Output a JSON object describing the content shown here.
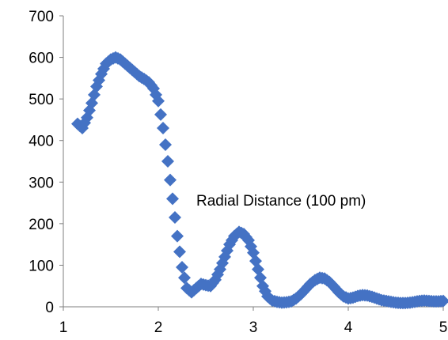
{
  "chart_data": {
    "type": "scatter",
    "title": "",
    "xlabel": "",
    "ylabel": "",
    "xlim": [
      1,
      5
    ],
    "ylim": [
      0,
      700
    ],
    "x_ticks": [
      "1",
      "2",
      "3",
      "4",
      "5"
    ],
    "y_ticks": [
      "0",
      "100",
      "200",
      "300",
      "400",
      "500",
      "600",
      "700"
    ],
    "grid": false,
    "legend": "none",
    "marker": "diamond",
    "series_color": "#4472C4",
    "annotation": "Radial  Distance (100 pm)",
    "series": [
      {
        "x": [
          1.15,
          1.2,
          1.25,
          1.3,
          1.35,
          1.4,
          1.45,
          1.5,
          1.55,
          1.6,
          1.65,
          1.7,
          1.75,
          1.8,
          1.85,
          1.9,
          1.95,
          2.0,
          2.05,
          2.1,
          2.15,
          2.2,
          2.25,
          2.3,
          2.35,
          2.4,
          2.45,
          2.5,
          2.55,
          2.6,
          2.65,
          2.7,
          2.75,
          2.8,
          2.85,
          2.9,
          2.95,
          3.0,
          3.05,
          3.1,
          3.15,
          3.2,
          3.25,
          3.3,
          3.35,
          3.4,
          3.45,
          3.5,
          3.55,
          3.6,
          3.65,
          3.7,
          3.75,
          3.8,
          3.85,
          3.9,
          3.95,
          4.0,
          4.05,
          4.1,
          4.15,
          4.2,
          4.25,
          4.3,
          4.35,
          4.4,
          4.45,
          4.5,
          4.55,
          4.6,
          4.65,
          4.7,
          4.75,
          4.8,
          4.85,
          4.9,
          4.95,
          5.0
        ],
        "y": [
          440,
          430,
          455,
          490,
          530,
          560,
          585,
          595,
          600,
          595,
          585,
          575,
          565,
          555,
          548,
          540,
          525,
          495,
          430,
          350,
          260,
          170,
          95,
          45,
          35,
          45,
          55,
          52,
          50,
          65,
          90,
          120,
          150,
          170,
          180,
          175,
          160,
          130,
          90,
          50,
          25,
          15,
          12,
          10,
          11,
          13,
          20,
          30,
          42,
          55,
          64,
          70,
          68,
          60,
          48,
          35,
          25,
          20,
          22,
          26,
          28,
          27,
          24,
          20,
          16,
          14,
          12,
          10,
          9,
          9,
          10,
          12,
          14,
          15,
          14,
          13,
          13,
          14
        ]
      }
    ]
  }
}
